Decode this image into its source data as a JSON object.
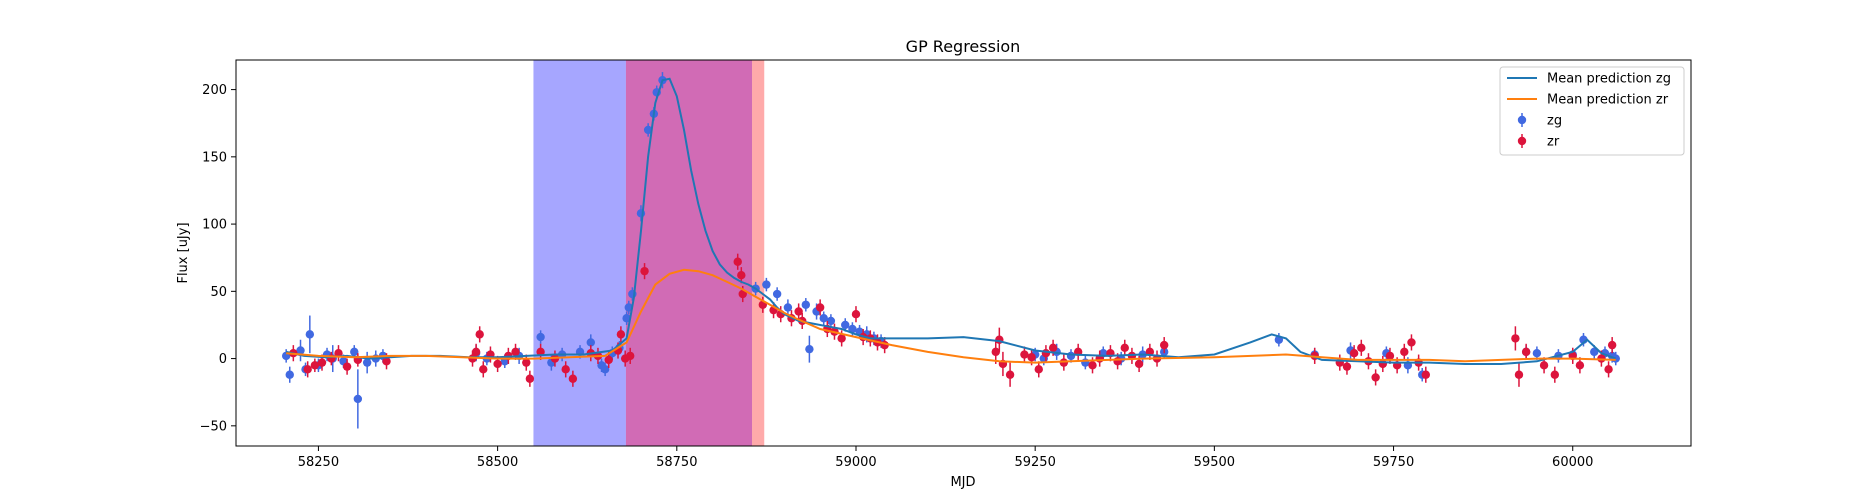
{
  "chart_data": {
    "type": "scatter",
    "title": "GP Regression",
    "xlabel": "MJD",
    "ylabel": "Flux [uJy]",
    "xlim": [
      58135,
      60165
    ],
    "ylim": [
      -65,
      222
    ],
    "xticks": [
      58250,
      58500,
      58750,
      59000,
      59250,
      59500,
      59750,
      60000
    ],
    "yticks": [
      -50,
      0,
      50,
      100,
      150,
      200
    ],
    "grid": false,
    "legend_position": "top-right",
    "shaded_regions": [
      {
        "x": [
          58550,
          58679
        ],
        "color": "#0000ff",
        "opacity": 0.35
      },
      {
        "x": [
          58679,
          58855
        ],
        "color": "#b0007f",
        "opacity": 0.58
      },
      {
        "x": [
          58855,
          58872
        ],
        "color": "#ff5555",
        "opacity": 0.5
      }
    ],
    "series": [
      {
        "name": "Mean prediction zg",
        "kind": "line",
        "color": "#1f77b4",
        "x": [
          58205,
          58230,
          58260,
          58290,
          58320,
          58350,
          58380,
          58420,
          58460,
          58500,
          58540,
          58580,
          58620,
          58660,
          58680,
          58690,
          58700,
          58710,
          58720,
          58730,
          58740,
          58750,
          58760,
          58770,
          58780,
          58790,
          58800,
          58810,
          58820,
          58830,
          58840,
          58850,
          58860,
          58870,
          58880,
          58890,
          58900,
          58920,
          58940,
          58960,
          58980,
          59000,
          59020,
          59050,
          59100,
          59150,
          59200,
          59250,
          59300,
          59350,
          59400,
          59450,
          59500,
          59550,
          59580,
          59600,
          59620,
          59650,
          59700,
          59750,
          59800,
          59850,
          59900,
          59950,
          60000,
          60020,
          60040,
          60060
        ],
        "values": [
          5,
          2,
          1,
          2,
          0,
          1,
          2,
          2,
          1,
          1,
          2,
          3,
          3,
          6,
          15,
          45,
          95,
          150,
          190,
          207,
          208,
          195,
          170,
          140,
          115,
          95,
          80,
          70,
          64,
          60,
          57,
          55,
          52,
          48,
          44,
          38,
          33,
          28,
          26,
          24,
          22,
          18,
          15,
          15,
          15,
          16,
          13,
          6,
          3,
          2,
          3,
          1,
          3,
          12,
          18,
          15,
          5,
          -1,
          -2,
          -3,
          -3,
          -4,
          -4,
          -2,
          5,
          14,
          4,
          0
        ]
      },
      {
        "name": "Mean prediction zr",
        "kind": "line",
        "color": "#ff7f0e",
        "x": [
          58205,
          58250,
          58300,
          58350,
          58400,
          58450,
          58500,
          58550,
          58600,
          58650,
          58680,
          58700,
          58720,
          58740,
          58760,
          58780,
          58800,
          58820,
          58840,
          58860,
          58880,
          58900,
          58920,
          58950,
          59000,
          59050,
          59100,
          59150,
          59200,
          59250,
          59300,
          59400,
          59500,
          59600,
          59650,
          59700,
          59750,
          59800,
          59850,
          59900,
          59950,
          60000,
          60060
        ],
        "values": [
          4,
          2,
          1,
          2,
          2,
          1,
          0,
          0,
          1,
          2,
          12,
          35,
          55,
          63,
          66,
          65,
          62,
          57,
          52,
          46,
          40,
          34,
          29,
          22,
          16,
          10,
          5,
          1,
          -2,
          -3,
          -2,
          0,
          1,
          3,
          1,
          -1,
          -1,
          -1,
          -2,
          -1,
          0,
          0,
          -1
        ]
      },
      {
        "name": "zg",
        "kind": "errorbar",
        "color": "#4169e1",
        "x": [
          58205,
          58210,
          58225,
          58232,
          58238,
          58250,
          58262,
          58270,
          58285,
          58300,
          58305,
          58318,
          58330,
          58340,
          58470,
          58485,
          58510,
          58530,
          58560,
          58575,
          58590,
          58615,
          58630,
          58645,
          58650,
          58660,
          58670,
          58680,
          58683,
          58688,
          58700,
          58710,
          58718,
          58722,
          58730,
          58860,
          58875,
          58890,
          58905,
          58930,
          58935,
          58945,
          58955,
          58965,
          58985,
          58995,
          59005,
          59015,
          59025,
          59035,
          59250,
          59262,
          59280,
          59300,
          59320,
          59345,
          59370,
          59400,
          59430,
          59590,
          59640,
          59690,
          59740,
          59770,
          59790,
          59935,
          59950,
          59980,
          60000,
          60015,
          60030,
          60045,
          60055,
          60060
        ],
        "values": [
          2,
          -12,
          6,
          -8,
          18,
          -5,
          3,
          0,
          -2,
          5,
          -30,
          -3,
          0,
          2,
          4,
          0,
          -2,
          2,
          16,
          -3,
          3,
          5,
          12,
          -5,
          -8,
          4,
          8,
          30,
          38,
          48,
          108,
          170,
          182,
          198,
          207,
          52,
          55,
          48,
          38,
          40,
          7,
          35,
          30,
          28,
          25,
          22,
          20,
          18,
          15,
          13,
          3,
          0,
          5,
          2,
          -3,
          4,
          0,
          3,
          5,
          14,
          3,
          6,
          4,
          -5,
          -12,
          5,
          4,
          2,
          3,
          14,
          5,
          4,
          2,
          0
        ],
        "errors": [
          5,
          6,
          8,
          5,
          14,
          5,
          5,
          10,
          5,
          5,
          22,
          8,
          6,
          5,
          6,
          5,
          5,
          6,
          5,
          6,
          5,
          5,
          6,
          5,
          5,
          5,
          5,
          5,
          5,
          5,
          6,
          5,
          5,
          5,
          6,
          5,
          5,
          5,
          6,
          5,
          10,
          6,
          5,
          5,
          5,
          5,
          5,
          6,
          5,
          5,
          5,
          5,
          6,
          5,
          5,
          5,
          5,
          6,
          5,
          5,
          5,
          6,
          5,
          6,
          5,
          5,
          5,
          5,
          5,
          5,
          5,
          5,
          5,
          5
        ]
      },
      {
        "name": "zr",
        "kind": "errorbar",
        "color": "#dc143c",
        "x": [
          58215,
          58235,
          58245,
          58255,
          58268,
          58278,
          58290,
          58305,
          58345,
          58465,
          58470,
          58475,
          58480,
          58490,
          58500,
          58515,
          58525,
          58540,
          58545,
          58560,
          58580,
          58595,
          58605,
          58630,
          58640,
          58655,
          58668,
          58672,
          58678,
          58685,
          58705,
          58835,
          58840,
          58842,
          58870,
          58885,
          58895,
          58910,
          58920,
          58925,
          58950,
          58960,
          58970,
          58980,
          59000,
          59010,
          59020,
          59030,
          59040,
          59195,
          59200,
          59205,
          59215,
          59235,
          59245,
          59255,
          59265,
          59275,
          59290,
          59310,
          59330,
          59340,
          59355,
          59365,
          59375,
          59385,
          59395,
          59410,
          59420,
          59430,
          59640,
          59675,
          59685,
          59695,
          59705,
          59715,
          59725,
          59735,
          59745,
          59755,
          59765,
          59775,
          59785,
          59795,
          59920,
          59925,
          59935,
          59960,
          59975,
          60000,
          60010,
          60040,
          60050,
          60055
        ],
        "values": [
          4,
          -8,
          -5,
          -3,
          0,
          4,
          -6,
          -1,
          -2,
          0,
          5,
          18,
          -8,
          3,
          -4,
          2,
          5,
          -3,
          -15,
          5,
          0,
          -8,
          -15,
          4,
          2,
          -1,
          6,
          18,
          0,
          2,
          65,
          72,
          62,
          48,
          40,
          36,
          33,
          30,
          35,
          28,
          38,
          22,
          20,
          15,
          33,
          16,
          15,
          12,
          10,
          5,
          14,
          -4,
          -12,
          3,
          1,
          -8,
          4,
          8,
          -3,
          5,
          -5,
          0,
          4,
          -2,
          8,
          2,
          -4,
          5,
          0,
          10,
          2,
          -3,
          -6,
          4,
          8,
          -2,
          -14,
          -4,
          2,
          -5,
          5,
          12,
          -3,
          -12,
          15,
          -12,
          5,
          -5,
          -12,
          2,
          -5,
          0,
          -8,
          10
        ],
        "errors": [
          6,
          6,
          5,
          6,
          5,
          6,
          6,
          5,
          6,
          6,
          6,
          6,
          6,
          6,
          6,
          6,
          6,
          6,
          6,
          6,
          6,
          6,
          6,
          6,
          6,
          6,
          6,
          6,
          6,
          6,
          6,
          6,
          6,
          6,
          6,
          6,
          6,
          6,
          6,
          6,
          6,
          6,
          6,
          6,
          6,
          6,
          6,
          6,
          6,
          9,
          9,
          9,
          9,
          6,
          6,
          6,
          6,
          6,
          6,
          6,
          6,
          6,
          6,
          6,
          6,
          6,
          6,
          6,
          6,
          6,
          6,
          6,
          6,
          6,
          6,
          6,
          6,
          6,
          6,
          6,
          6,
          6,
          6,
          6,
          9,
          9,
          6,
          6,
          6,
          6,
          6,
          6,
          6,
          6
        ]
      }
    ]
  }
}
